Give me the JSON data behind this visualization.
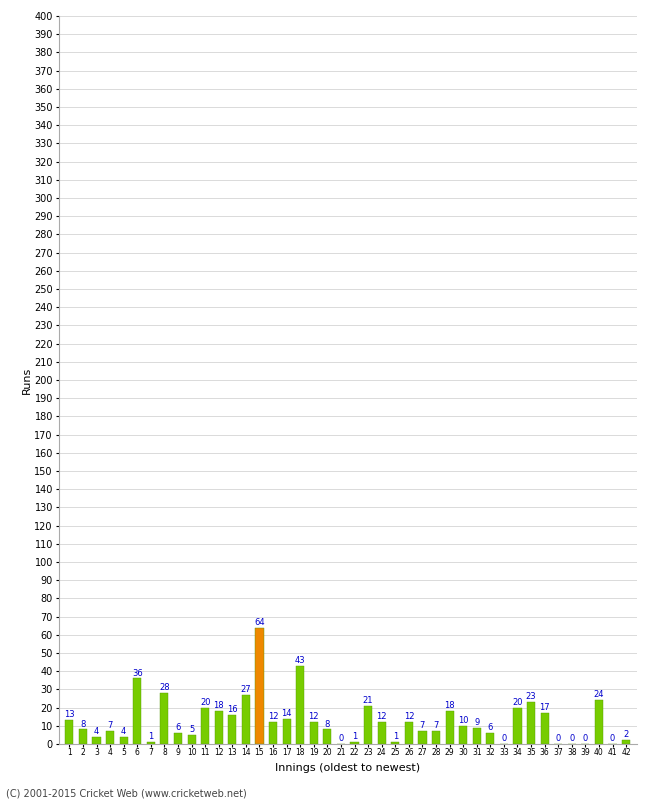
{
  "xlabel": "Innings (oldest to newest)",
  "ylabel": "Runs",
  "values": [
    13,
    8,
    4,
    7,
    4,
    36,
    1,
    28,
    6,
    5,
    20,
    18,
    16,
    27,
    64,
    12,
    14,
    43,
    12,
    8,
    0,
    1,
    21,
    12,
    1,
    12,
    7,
    7,
    18,
    10,
    9,
    6,
    0,
    20,
    23,
    17,
    0,
    0,
    0,
    24,
    0,
    2
  ],
  "bar_colors": [
    "#77cc00",
    "#77cc00",
    "#77cc00",
    "#77cc00",
    "#77cc00",
    "#77cc00",
    "#77cc00",
    "#77cc00",
    "#77cc00",
    "#77cc00",
    "#77cc00",
    "#77cc00",
    "#77cc00",
    "#77cc00",
    "#ee8800",
    "#77cc00",
    "#77cc00",
    "#77cc00",
    "#77cc00",
    "#77cc00",
    "#77cc00",
    "#77cc00",
    "#77cc00",
    "#77cc00",
    "#77cc00",
    "#77cc00",
    "#77cc00",
    "#77cc00",
    "#77cc00",
    "#77cc00",
    "#77cc00",
    "#77cc00",
    "#77cc00",
    "#77cc00",
    "#77cc00",
    "#77cc00",
    "#77cc00",
    "#77cc00",
    "#77cc00",
    "#77cc00",
    "#77cc00",
    "#77cc00"
  ],
  "ylim": [
    0,
    400
  ],
  "yticks": [
    0,
    10,
    20,
    30,
    40,
    50,
    60,
    70,
    80,
    90,
    100,
    110,
    120,
    130,
    140,
    150,
    160,
    170,
    180,
    190,
    200,
    210,
    220,
    230,
    240,
    250,
    260,
    270,
    280,
    290,
    300,
    310,
    320,
    330,
    340,
    350,
    360,
    370,
    380,
    390,
    400
  ],
  "background_color": "#ffffff",
  "grid_color": "#cccccc",
  "label_color": "#0000cc",
  "bar_label_fontsize": 6,
  "axis_label_fontsize": 8,
  "ylabel_fontsize": 8,
  "tick_fontsize": 7,
  "footer": "(C) 2001-2015 Cricket Web (www.cricketweb.net)"
}
